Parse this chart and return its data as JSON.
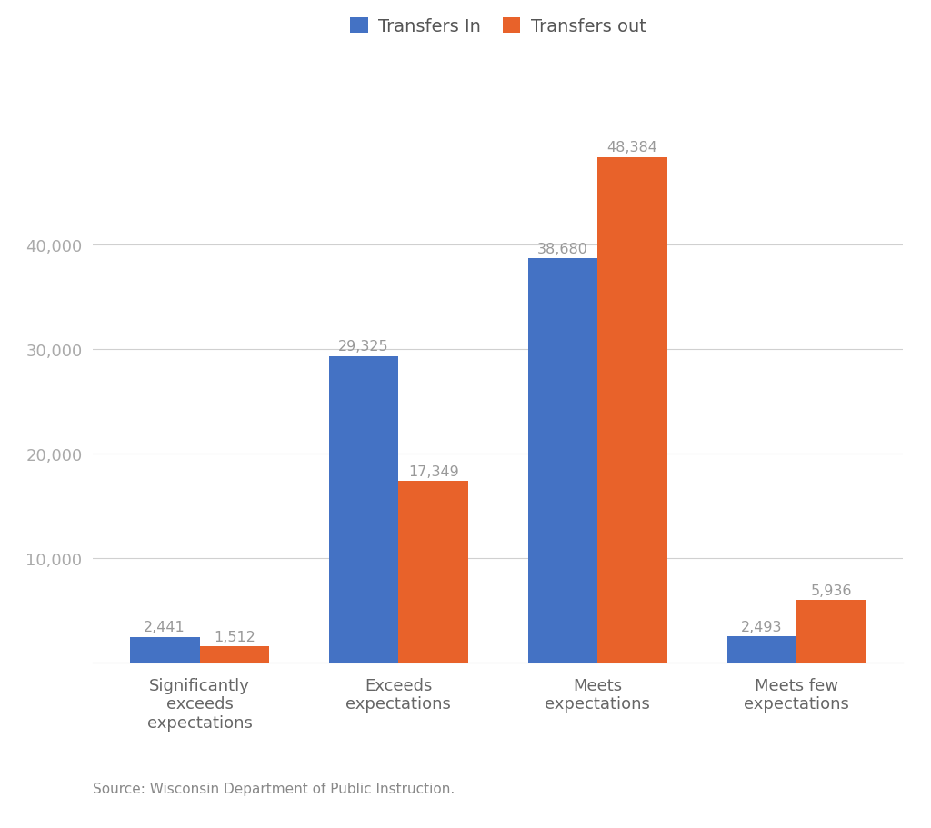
{
  "categories": [
    "Significantly\nexceeds\nexpectations",
    "Exceeds\nexpectations",
    "Meets\nexpectations",
    "Meets few\nexpectations"
  ],
  "transfers_in": [
    2441,
    29325,
    38680,
    2493
  ],
  "transfers_out": [
    1512,
    17349,
    48384,
    5936
  ],
  "transfers_in_labels": [
    "2,441",
    "29,325",
    "38,680",
    "2,493"
  ],
  "transfers_out_labels": [
    "1,512",
    "17,349",
    "48,384",
    "5,936"
  ],
  "color_in": "#4472C4",
  "color_out": "#E8622A",
  "legend_labels": [
    "Transfers In",
    "Transfers out"
  ],
  "yticks": [
    10000,
    20000,
    30000,
    40000
  ],
  "ytick_labels": [
    "10,000",
    "20,000",
    "30,000",
    "40,000"
  ],
  "ylim": [
    0,
    54000
  ],
  "background_color": "#ffffff",
  "grid_color": "#d0d0d0",
  "source_text": "Source: Wisconsin Department of Public Instruction.",
  "bar_width": 0.35,
  "label_fontsize": 11.5,
  "tick_fontsize": 13,
  "legend_fontsize": 14,
  "source_fontsize": 11,
  "label_color": "#999999",
  "tick_color": "#aaaaaa",
  "xtick_color": "#666666"
}
